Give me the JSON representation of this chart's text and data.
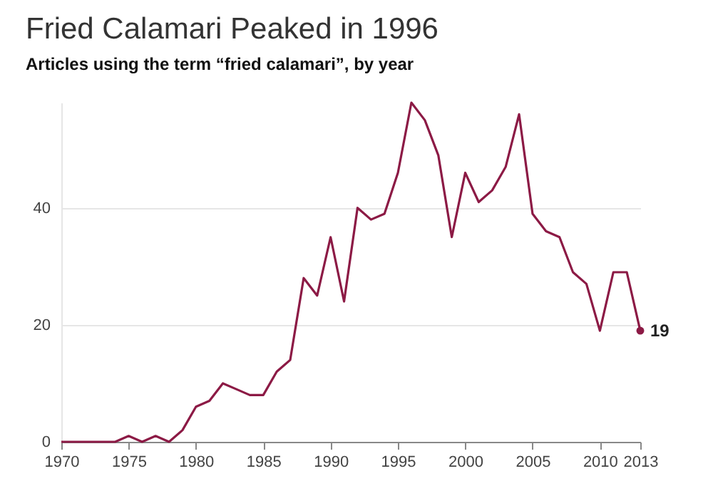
{
  "chart_data": {
    "type": "line",
    "title": "Fried Calamari Peaked in 1996",
    "subtitle": "Articles using the term “fried calamari”, by year",
    "x": [
      1970,
      1971,
      1972,
      1973,
      1974,
      1975,
      1976,
      1977,
      1978,
      1979,
      1980,
      1981,
      1982,
      1983,
      1984,
      1985,
      1986,
      1987,
      1988,
      1989,
      1990,
      1991,
      1992,
      1993,
      1994,
      1995,
      1996,
      1997,
      1998,
      1999,
      2000,
      2001,
      2002,
      2003,
      2004,
      2005,
      2006,
      2007,
      2008,
      2009,
      2010,
      2011,
      2012,
      2013
    ],
    "series": [
      {
        "color": "#8c1a45",
        "values": [
          0,
          0,
          0,
          0,
          0,
          1,
          0,
          1,
          0,
          2,
          6,
          7,
          10,
          9,
          8,
          8,
          12,
          14,
          28,
          25,
          35,
          24,
          40,
          38,
          39,
          46,
          58,
          55,
          49,
          35,
          46,
          41,
          43,
          47,
          56,
          39,
          36,
          35,
          29,
          27,
          19,
          29,
          29,
          19
        ]
      }
    ],
    "annotations": [
      {
        "text": "19",
        "x": 2013,
        "y": 19
      }
    ],
    "xlim": [
      1970,
      2013
    ],
    "xticks": [
      1970,
      1975,
      1980,
      1985,
      1990,
      1995,
      2000,
      2005,
      2010,
      2013
    ],
    "ylim": [
      0,
      58
    ],
    "yticks": [
      0,
      20,
      40
    ],
    "grid": "y",
    "legend": false,
    "marker": "none",
    "line_style": "solid"
  }
}
